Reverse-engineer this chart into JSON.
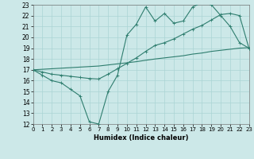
{
  "xlabel": "Humidex (Indice chaleur)",
  "bg_color": "#cce8e8",
  "grid_color": "#aad4d4",
  "line_color": "#2e7d6e",
  "xlim": [
    0,
    23
  ],
  "ylim": [
    12,
    23
  ],
  "xticks": [
    0,
    1,
    2,
    3,
    4,
    5,
    6,
    7,
    8,
    9,
    10,
    11,
    12,
    13,
    14,
    15,
    16,
    17,
    18,
    19,
    20,
    21,
    22,
    23
  ],
  "yticks": [
    12,
    13,
    14,
    15,
    16,
    17,
    18,
    19,
    20,
    21,
    22,
    23
  ],
  "line1_x": [
    0,
    1,
    2,
    3,
    4,
    5,
    6,
    7,
    8,
    9,
    10,
    11,
    12,
    13,
    14,
    15,
    16,
    17,
    18,
    19,
    20,
    21,
    22,
    23
  ],
  "line1_y": [
    17.0,
    16.5,
    16.0,
    15.8,
    15.2,
    14.6,
    12.2,
    12.0,
    15.0,
    16.5,
    20.2,
    21.2,
    22.8,
    21.5,
    22.2,
    21.3,
    21.5,
    22.8,
    23.2,
    23.0,
    22.0,
    21.0,
    19.5,
    19.0
  ],
  "line2_x": [
    0,
    1,
    2,
    3,
    4,
    5,
    6,
    7,
    8,
    9,
    10,
    11,
    12,
    13,
    14,
    15,
    16,
    17,
    18,
    19,
    20,
    21,
    22,
    23
  ],
  "line2_y": [
    17.0,
    16.8,
    16.6,
    16.5,
    16.4,
    16.3,
    16.2,
    16.15,
    16.6,
    17.1,
    17.6,
    18.1,
    18.7,
    19.25,
    19.5,
    19.85,
    20.3,
    20.75,
    21.1,
    21.6,
    22.1,
    22.2,
    22.0,
    19.0
  ],
  "line3_x": [
    0,
    1,
    2,
    3,
    4,
    5,
    6,
    7,
    8,
    9,
    10,
    11,
    12,
    13,
    14,
    15,
    16,
    17,
    18,
    19,
    20,
    21,
    22,
    23
  ],
  "line3_y": [
    17.0,
    17.05,
    17.1,
    17.15,
    17.2,
    17.25,
    17.3,
    17.35,
    17.45,
    17.55,
    17.65,
    17.75,
    17.88,
    18.0,
    18.1,
    18.2,
    18.3,
    18.45,
    18.55,
    18.7,
    18.8,
    18.9,
    19.0,
    19.05
  ]
}
